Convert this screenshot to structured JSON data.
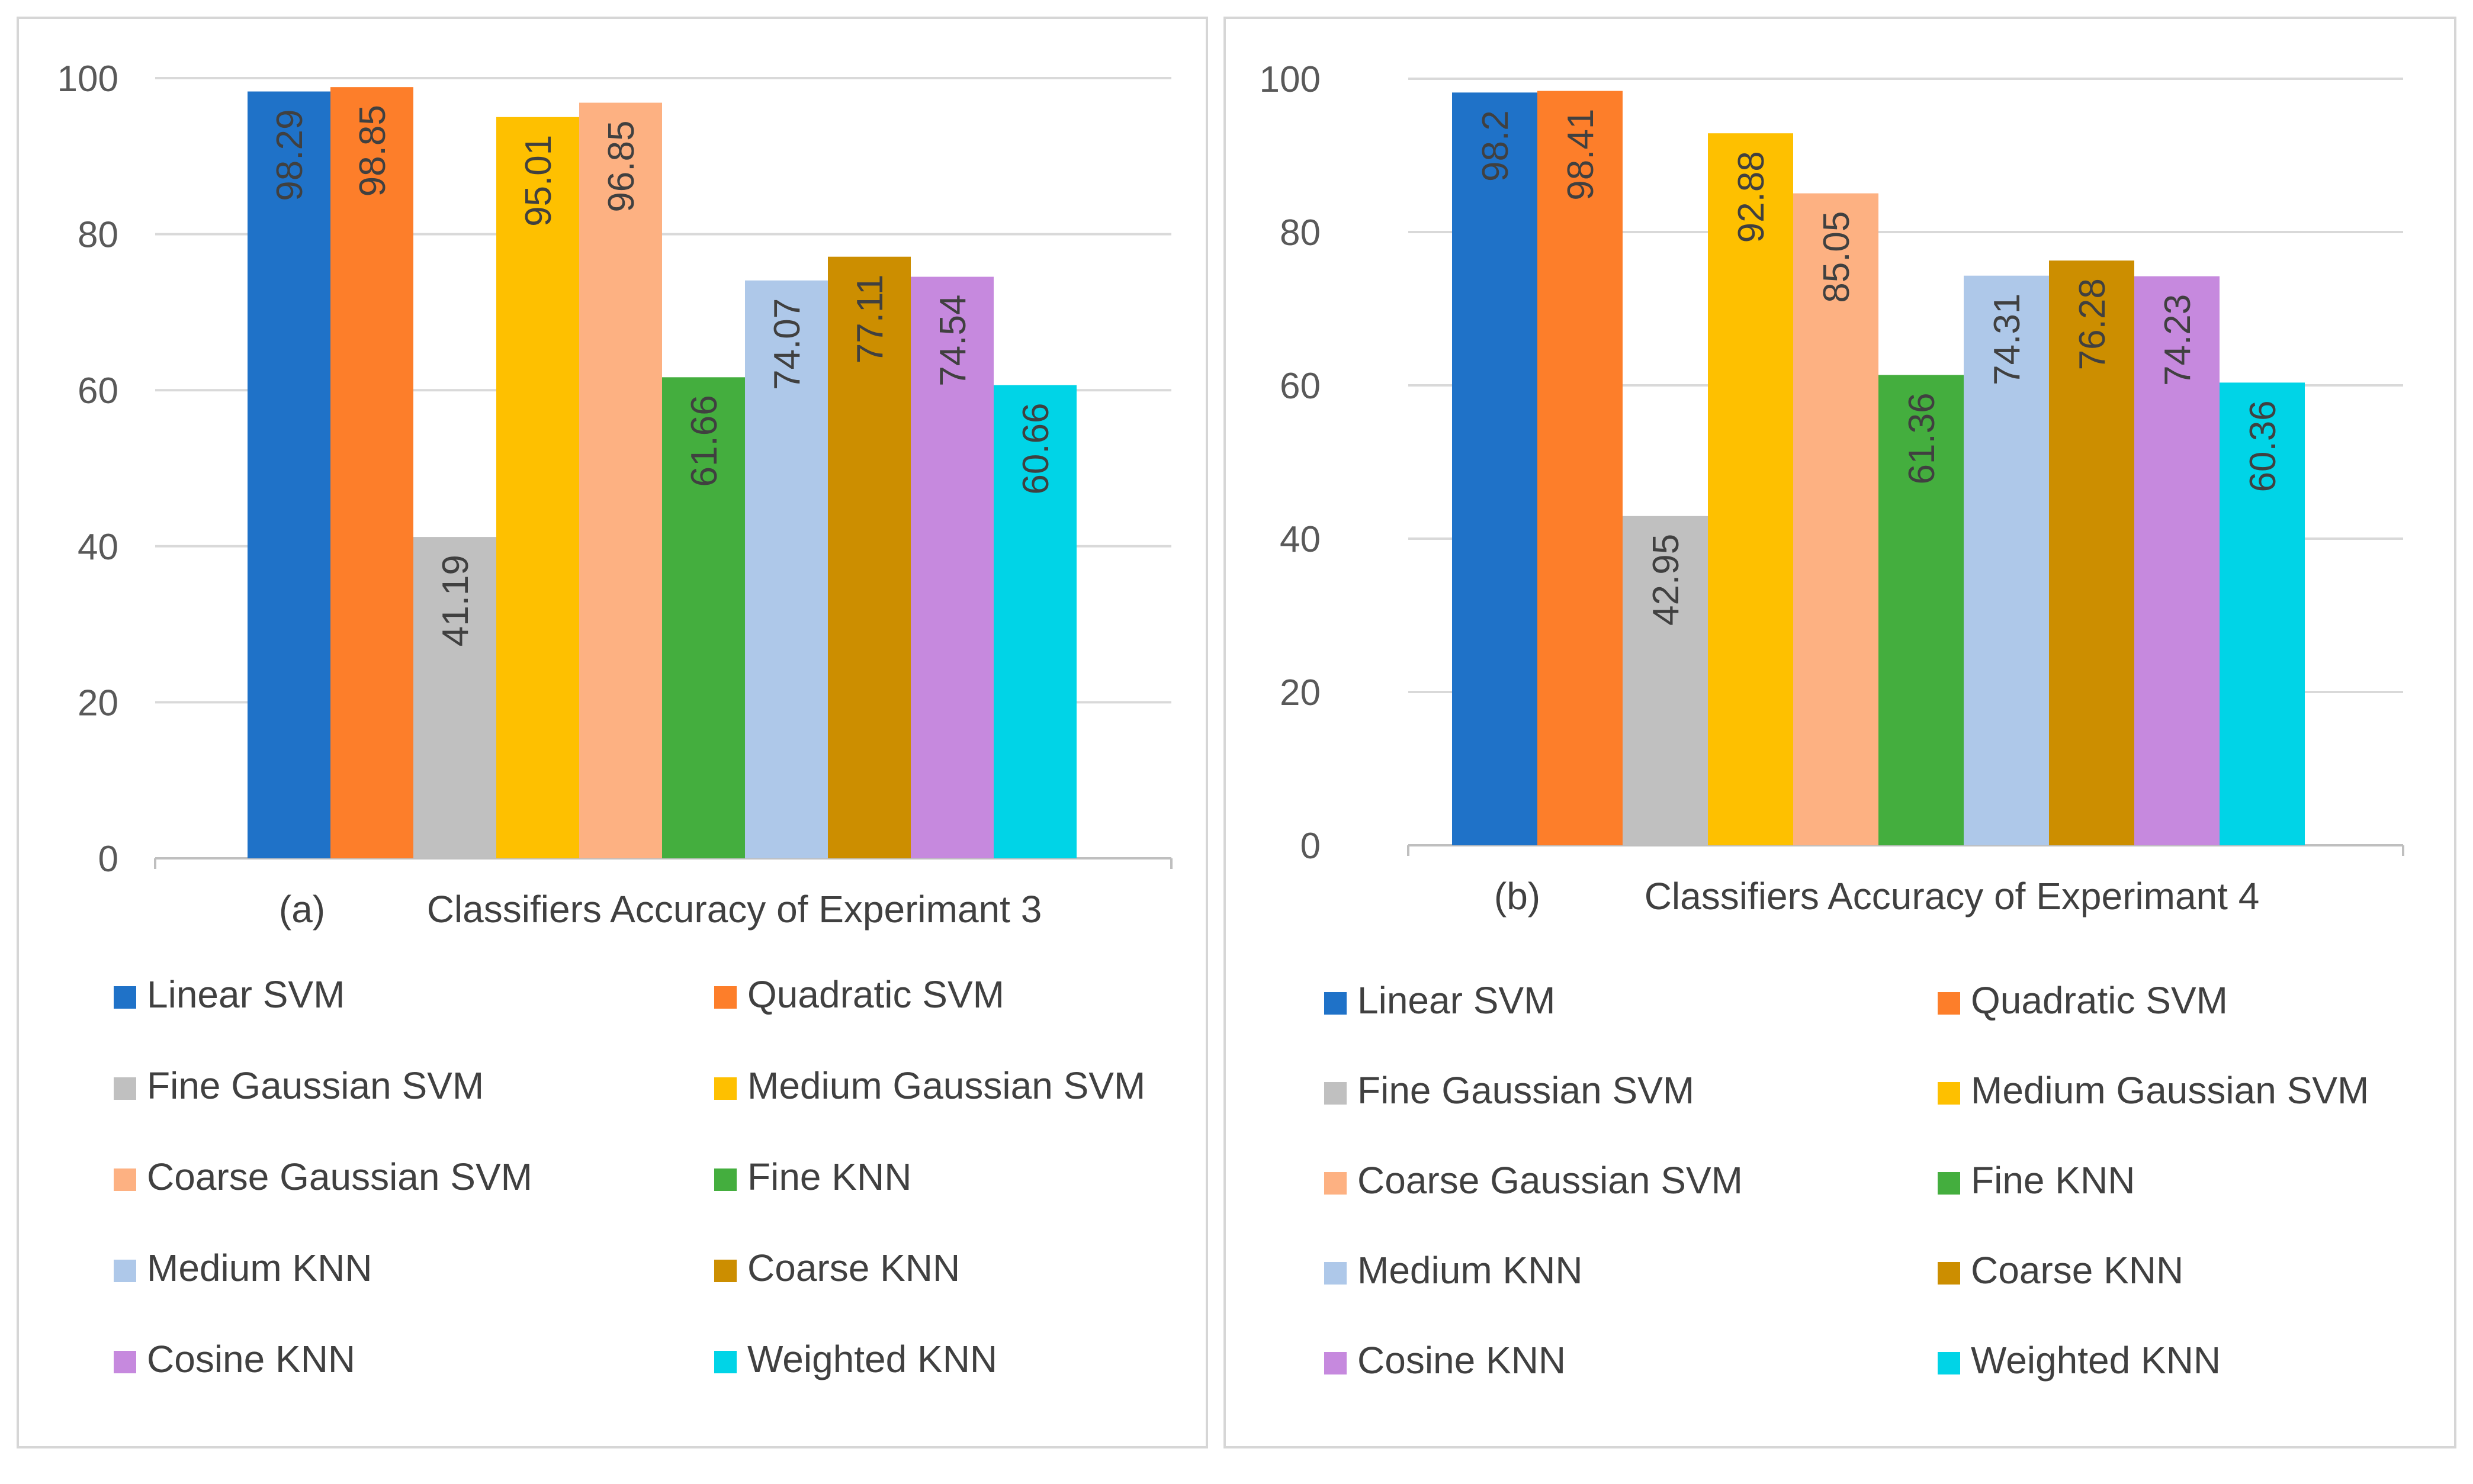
{
  "colors": {
    "Linear SVM": "#1f72c8",
    "Quadratic SVM": "#fd7e2a",
    "Fine Gaussian SVM": "#c0c0c0",
    "Medium Gaussian SVM": "#fec000",
    "Coarse Gaussian SVM": "#fdb182",
    "Fine KNN": "#44ae3e",
    "Medium KNN": "#aec8e9",
    "Coarse KNN": "#cc8e00",
    "Cosine KNN": "#c689de",
    "Weighted KNN": "#00d4e7"
  },
  "chart_data": [
    {
      "type": "bar",
      "panel_label": "(a)",
      "title": "Classifiers Accuracy of Experimant 3",
      "xlabel": "",
      "ylabel": "",
      "ylim": [
        0,
        100
      ],
      "yticks": [
        0,
        20,
        40,
        60,
        80,
        100
      ],
      "grid": true,
      "legend_position": "bottom",
      "series": [
        {
          "name": "Linear SVM",
          "value": 98.29,
          "label": "98.29"
        },
        {
          "name": "Quadratic SVM",
          "value": 98.85,
          "label": "98.85"
        },
        {
          "name": "Fine Gaussian SVM",
          "value": 41.19,
          "label": "41.19"
        },
        {
          "name": "Medium Gaussian SVM",
          "value": 95.01,
          "label": "95.01"
        },
        {
          "name": "Coarse Gaussian SVM",
          "value": 96.85,
          "label": "96.85"
        },
        {
          "name": "Fine KNN",
          "value": 61.66,
          "label": "61.66"
        },
        {
          "name": "Medium KNN",
          "value": 74.07,
          "label": "74.07"
        },
        {
          "name": "Coarse KNN",
          "value": 77.11,
          "label": "77.11"
        },
        {
          "name": "Cosine KNN",
          "value": 74.54,
          "label": "74.54"
        },
        {
          "name": "Weighted KNN",
          "value": 60.66,
          "label": "60.66"
        }
      ]
    },
    {
      "type": "bar",
      "panel_label": "(b)",
      "title": "Classifiers Accuracy of Experimant 4",
      "xlabel": "",
      "ylabel": "",
      "ylim": [
        0,
        100
      ],
      "yticks": [
        0,
        20,
        40,
        60,
        80,
        100
      ],
      "grid": true,
      "legend_position": "bottom",
      "series": [
        {
          "name": "Linear SVM",
          "value": 98.2,
          "label": "98.2"
        },
        {
          "name": "Quadratic SVM",
          "value": 98.41,
          "label": "98.41"
        },
        {
          "name": "Fine Gaussian SVM",
          "value": 42.95,
          "label": "42.95"
        },
        {
          "name": "Medium Gaussian SVM",
          "value": 92.88,
          "label": "92.88"
        },
        {
          "name": "Coarse Gaussian SVM",
          "value": 85.05,
          "label": "85.05"
        },
        {
          "name": "Fine KNN",
          "value": 61.36,
          "label": "61.36"
        },
        {
          "name": "Medium KNN",
          "value": 74.31,
          "label": "74.31"
        },
        {
          "name": "Coarse KNN",
          "value": 76.28,
          "label": "76.28"
        },
        {
          "name": "Cosine KNN",
          "value": 74.23,
          "label": "74.23"
        },
        {
          "name": "Weighted KNN",
          "value": 60.36,
          "label": "60.36"
        }
      ]
    }
  ]
}
